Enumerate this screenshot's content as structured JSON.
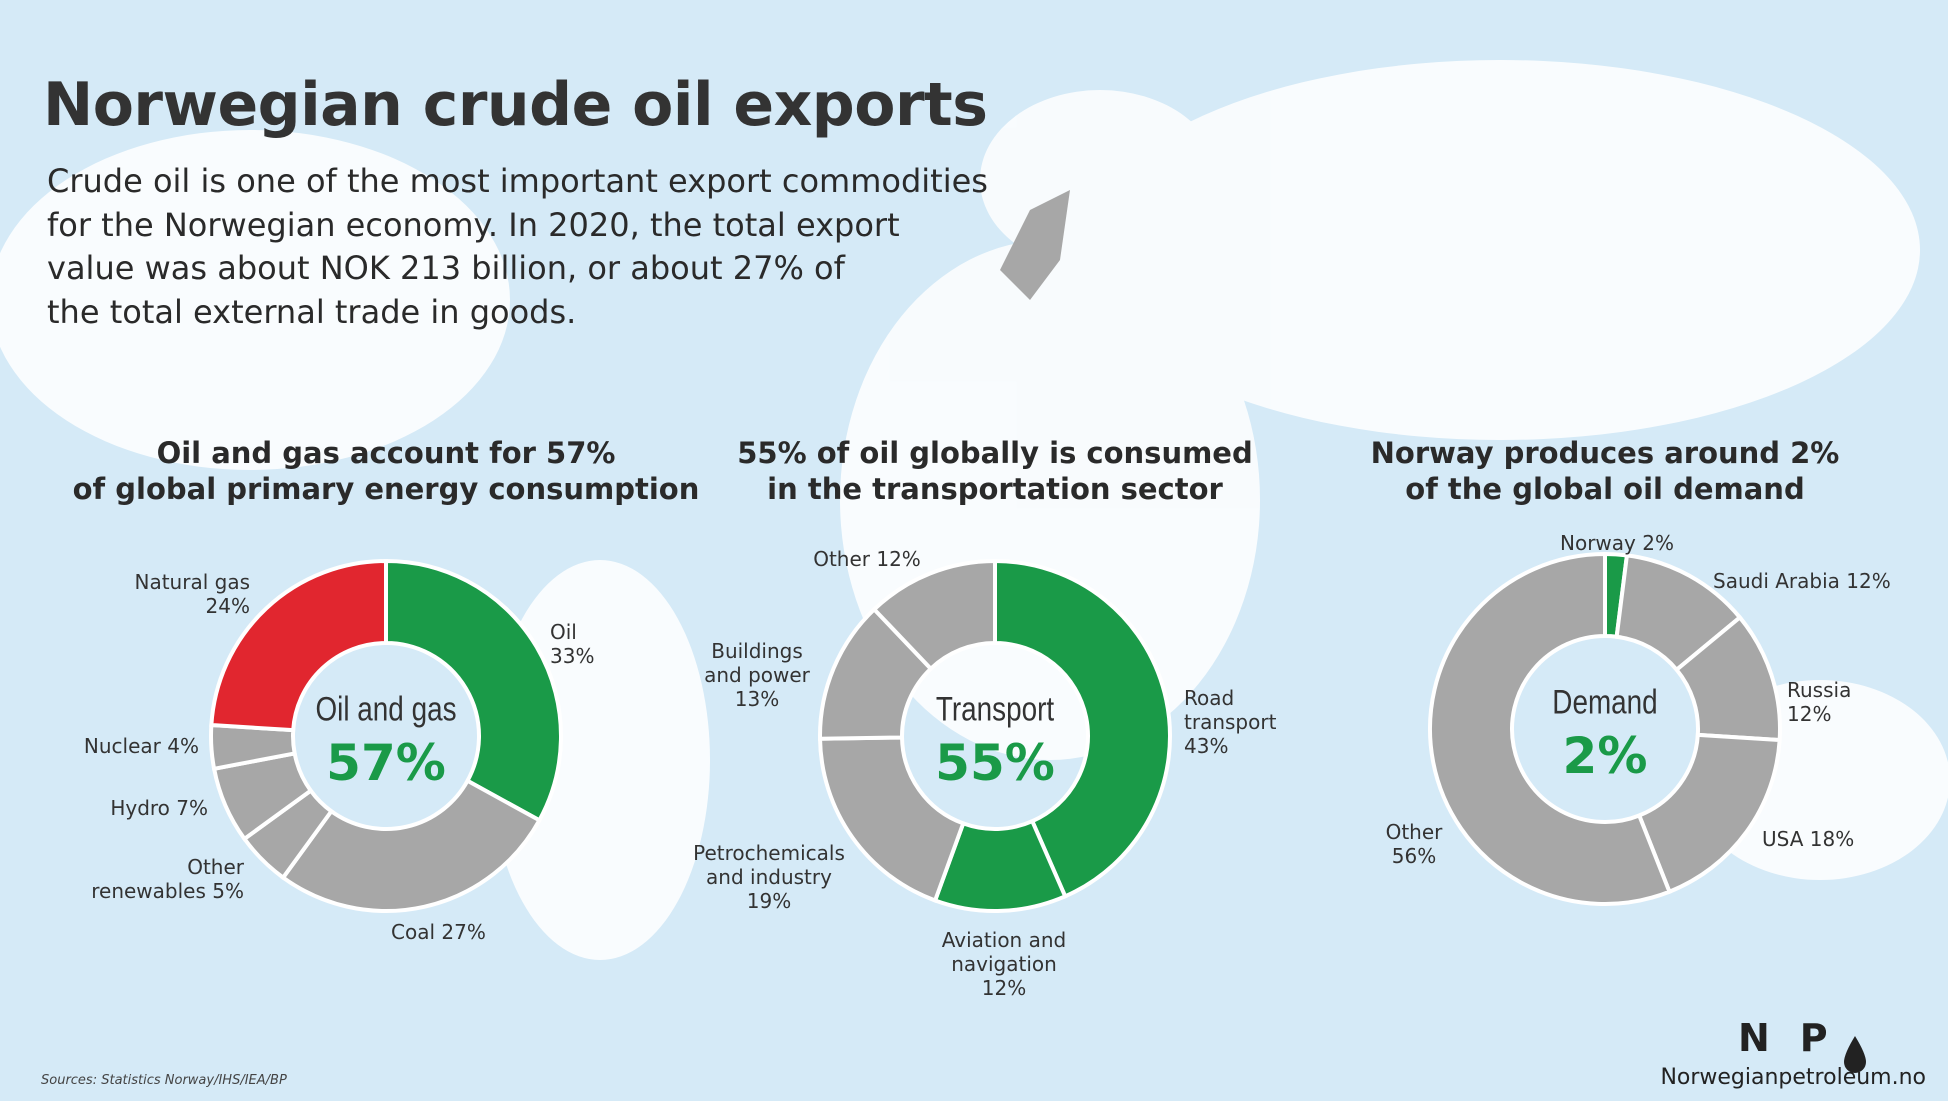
{
  "header": {
    "title": "Norwegian crude oil exports",
    "intro": [
      "Crude oil is one of the most important export commodities",
      "for the Norwegian economy. In 2020, the total export",
      "value was about NOK 213 billion, or about 27% of",
      "the total external trade in goods."
    ]
  },
  "chart_data": [
    {
      "type": "donut",
      "title": [
        "Oil and gas account for 57%",
        "of global primary energy consumption"
      ],
      "center": {
        "label": "Oil and gas",
        "value": 57,
        "value_label": "57%"
      },
      "categories": [
        "Oil",
        "Coal",
        "Other renewables",
        "Hydro",
        "Nuclear",
        "Natural gas"
      ],
      "values": [
        33,
        27,
        5,
        7,
        4,
        24
      ],
      "value_labels": [
        "33%",
        "27%",
        "5%",
        "7%",
        "4%",
        "24%"
      ],
      "colors": [
        "#1a9a48",
        "#a7a7a7",
        "#a7a7a7",
        "#a7a7a7",
        "#a7a7a7",
        "#e1262f"
      ]
    },
    {
      "type": "donut",
      "title": [
        "55% of oil globally is consumed",
        "in the transportation sector"
      ],
      "center": {
        "label": "Transport",
        "value": 55,
        "value_label": "55%"
      },
      "categories": [
        "Road transport",
        "Aviation and navigation",
        "Petrochemicals and industry",
        "Buildings and power",
        "Other"
      ],
      "values": [
        43,
        12,
        19,
        13,
        12
      ],
      "value_labels": [
        "43%",
        "12%",
        "19%",
        "13%",
        "12%"
      ],
      "colors": [
        "#1a9a48",
        "#1a9a48",
        "#a7a7a7",
        "#a7a7a7",
        "#a7a7a7"
      ]
    },
    {
      "type": "donut",
      "title": [
        "Norway produces around 2%",
        "of the global oil demand"
      ],
      "center": {
        "label": "Demand",
        "value": 2,
        "value_label": "2%"
      },
      "categories": [
        "Norway",
        "Saudi Arabia",
        "Russia",
        "USA",
        "Other"
      ],
      "values": [
        2,
        12,
        12,
        18,
        56
      ],
      "value_labels": [
        "2%",
        "12%",
        "12%",
        "18%",
        "56%"
      ],
      "colors": [
        "#1a9a48",
        "#a7a7a7",
        "#a7a7a7",
        "#a7a7a7",
        "#a7a7a7"
      ]
    }
  ],
  "footer": {
    "sources": "Sources: Statistics Norway/IHS/IEA/BP",
    "logo": "NP",
    "site": "Norwegianpetroleum.no"
  }
}
